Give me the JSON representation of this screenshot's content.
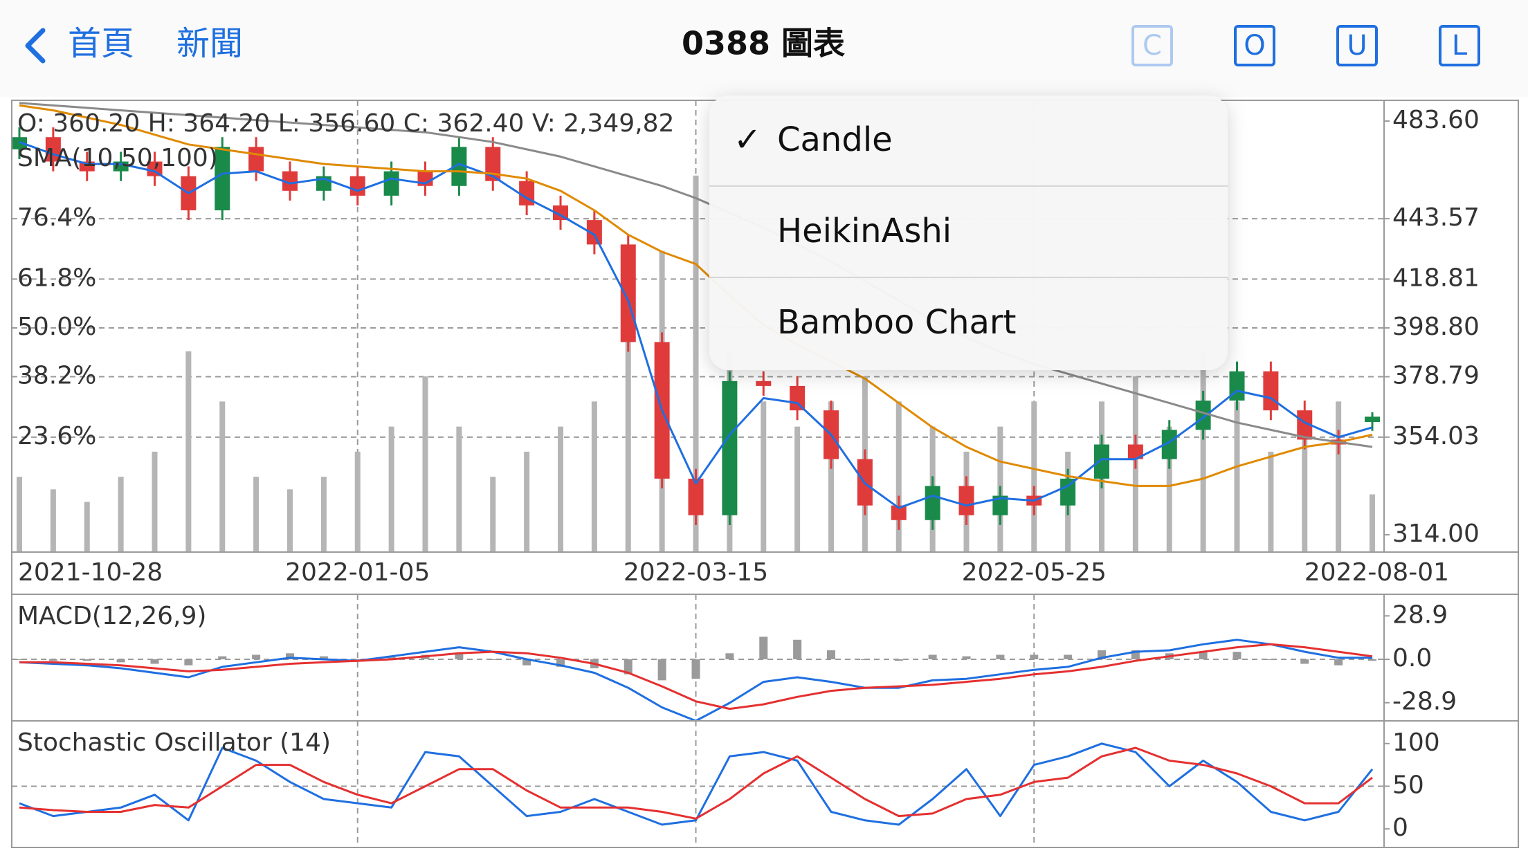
{
  "header": {
    "back": "首頁",
    "news": "新聞",
    "title": "0388 圖表",
    "buttons": [
      "C",
      "O",
      "U",
      "L"
    ]
  },
  "menu": {
    "items": [
      "Candle",
      "HeikinAshi",
      "Bamboo Chart"
    ],
    "selected": 0,
    "check": "✓"
  },
  "chart_data": [
    {
      "type": "candlestick",
      "info": "O: 360.20   H: 364.20   L: 356.60   C: 362.40   V: 2,349,82",
      "title": "SMA(10,50,100)",
      "categories": [
        "2021-10-28",
        null,
        null,
        null,
        null,
        null,
        null,
        null,
        null,
        null,
        "2022-01-05",
        null,
        null,
        null,
        null,
        null,
        null,
        null,
        null,
        null,
        "2022-03-15",
        null,
        null,
        null,
        null,
        null,
        null,
        null,
        null,
        null,
        "2022-05-25",
        null,
        null,
        null,
        null,
        null,
        null,
        null,
        null,
        null,
        "2022-08-01"
      ],
      "open": [
        472,
        477,
        467,
        463,
        467,
        461,
        447,
        473,
        463,
        455,
        461,
        453,
        463,
        457,
        473,
        459,
        449,
        443,
        433,
        393,
        337,
        322,
        377,
        375,
        365,
        345,
        326,
        320,
        334,
        322,
        330,
        326,
        337,
        351,
        345,
        357,
        369,
        381,
        365,
        353,
        360.2
      ],
      "high": [
        481,
        481,
        471,
        471,
        471,
        465,
        477,
        477,
        467,
        465,
        465,
        467,
        467,
        477,
        477,
        463,
        453,
        447,
        437,
        397,
        341,
        381,
        381,
        379,
        369,
        349,
        330,
        338,
        338,
        334,
        334,
        341,
        355,
        355,
        361,
        373,
        385,
        385,
        369,
        357,
        364.2
      ],
      "low": [
        468,
        463,
        459,
        459,
        457,
        443,
        443,
        459,
        451,
        451,
        449,
        449,
        453,
        453,
        455,
        445,
        439,
        429,
        389,
        333,
        318,
        318,
        371,
        361,
        341,
        322,
        316,
        316,
        318,
        318,
        322,
        322,
        333,
        341,
        341,
        353,
        365,
        361,
        349,
        347,
        356.6
      ],
      "close": [
        477,
        467,
        463,
        467,
        461,
        447,
        473,
        463,
        455,
        461,
        453,
        463,
        457,
        473,
        459,
        449,
        443,
        433,
        393,
        337,
        322,
        377,
        375,
        365,
        345,
        326,
        320,
        334,
        322,
        330,
        326,
        337,
        351,
        345,
        357,
        369,
        381,
        365,
        353,
        351,
        362.4
      ],
      "up_color": "#1a8a4a",
      "down_color": "#e03b3b",
      "series": [
        {
          "color": "#1f6fe0",
          "values": [
            475,
            470,
            466,
            466,
            463,
            454,
            462,
            463,
            458,
            460,
            455,
            460,
            458,
            466,
            461,
            452,
            445,
            437,
            410,
            365,
            335,
            355,
            370,
            368,
            355,
            335,
            325,
            330,
            326,
            329,
            328,
            334,
            345,
            345,
            352,
            362,
            373,
            370,
            360,
            354,
            358
          ]
        },
        {
          "color": "#e08a00",
          "values": [
            490,
            488,
            485,
            482,
            478,
            474,
            472,
            470,
            468,
            466,
            465,
            464,
            463,
            463,
            462,
            460,
            455,
            447,
            437,
            430,
            425,
            412,
            400,
            392,
            385,
            378,
            368,
            358,
            350,
            344,
            341,
            338,
            336,
            334,
            334,
            337,
            342,
            346,
            350,
            352,
            355
          ]
        },
        {
          "color": "#8a8a8a",
          "values": [
            491,
            490,
            489,
            488,
            487,
            486,
            485,
            484,
            483,
            482,
            481,
            480,
            479,
            477,
            475,
            472,
            469,
            465,
            461,
            457,
            452,
            446,
            440,
            433,
            426,
            418,
            410,
            402,
            395,
            389,
            384,
            380,
            376,
            372,
            368,
            364,
            360,
            357,
            354,
            352,
            350
          ]
        }
      ],
      "volume": {
        "color": "#b5b5b5",
        "values": [
          3,
          2.5,
          2,
          3,
          4,
          8,
          6,
          3,
          2.5,
          3,
          4,
          5,
          7,
          5,
          3,
          4,
          5,
          6,
          9,
          12,
          15,
          8,
          6,
          5,
          6,
          7,
          6,
          5,
          4,
          5,
          6,
          4,
          6,
          7,
          5,
          8,
          6,
          4,
          5,
          6,
          2.3
        ]
      },
      "volume_ylim": [
        0,
        18
      ],
      "fib_levels": [
        {
          "value": 443.57,
          "label": "76.4%"
        },
        {
          "value": 418.81,
          "label": "61.8%"
        },
        {
          "value": 398.8,
          "label": "50.0%"
        },
        {
          "value": 378.79,
          "label": "38.2%"
        },
        {
          "value": 354.03,
          "label": "23.6%"
        }
      ],
      "ylim": [
        306.9,
        492.1
      ],
      "yticks": [
        {
          "value": 483.6,
          "label": "483.60"
        },
        443.57,
        418.81,
        {
          "value": 398.8,
          "label": "398.80"
        },
        378.79,
        354.03,
        {
          "value": 314,
          "label": "314.00"
        }
      ]
    },
    {
      "type": "line",
      "title": "MACD(12,26,9)",
      "series": [
        {
          "color": "#1f6fe0",
          "values": [
            -2,
            -3,
            -4,
            -6,
            -9,
            -12,
            -5,
            -2,
            1,
            0,
            -1,
            2,
            5,
            8,
            5,
            0,
            -4,
            -9,
            -19,
            -32,
            -41,
            -29,
            -15,
            -12,
            -15,
            -19,
            -19,
            -14,
            -13,
            -10,
            -7,
            -5,
            1,
            5,
            6,
            10,
            13,
            10,
            5,
            1,
            1
          ]
        },
        {
          "color": "#e53030",
          "values": [
            -2,
            -2,
            -3,
            -4,
            -6,
            -8,
            -7,
            -5,
            -3,
            -2,
            -1,
            0,
            2,
            4,
            5,
            4,
            1,
            -3,
            -9,
            -18,
            -28,
            -33,
            -30,
            -25,
            -21,
            -19,
            -18,
            -17,
            -15,
            -13,
            -10,
            -8,
            -5,
            -1,
            2,
            5,
            8,
            10,
            8,
            5,
            2
          ]
        }
      ],
      "histogram": {
        "color": "#9a9a9a",
        "values": [
          0,
          -1,
          -1,
          -2,
          -3,
          -4,
          2,
          3,
          4,
          2,
          0,
          2,
          3,
          4,
          0,
          -4,
          -5,
          -6,
          -10,
          -14,
          -13,
          4,
          15,
          13,
          6,
          0,
          -1,
          3,
          2,
          3,
          3,
          3,
          6,
          6,
          4,
          5,
          5,
          0,
          -3,
          -4,
          -1
        ]
      },
      "ylim": [
        -41,
        43.3
      ],
      "yticks": [
        28.9,
        {
          "value": 0,
          "label": "0.0"
        },
        -28.9
      ]
    },
    {
      "type": "line",
      "title": "Stochastic Oscillator (14)",
      "series": [
        {
          "color": "#1f6fe0",
          "values": [
            30,
            15,
            20,
            25,
            40,
            10,
            95,
            80,
            55,
            35,
            30,
            25,
            90,
            85,
            50,
            15,
            20,
            35,
            20,
            5,
            10,
            85,
            90,
            80,
            20,
            10,
            5,
            35,
            70,
            15,
            75,
            85,
            100,
            90,
            50,
            80,
            55,
            20,
            10,
            20,
            70
          ]
        },
        {
          "color": "#e53030",
          "values": [
            25,
            22,
            20,
            20,
            28,
            25,
            50,
            75,
            75,
            55,
            40,
            30,
            50,
            70,
            70,
            45,
            25,
            25,
            25,
            20,
            12,
            35,
            65,
            85,
            60,
            35,
            15,
            18,
            35,
            40,
            55,
            60,
            85,
            95,
            80,
            75,
            65,
            50,
            30,
            30,
            60
          ]
        }
      ],
      "ylim": [
        -21.8,
        126.6
      ],
      "yticks": [
        100,
        50,
        0
      ]
    }
  ]
}
